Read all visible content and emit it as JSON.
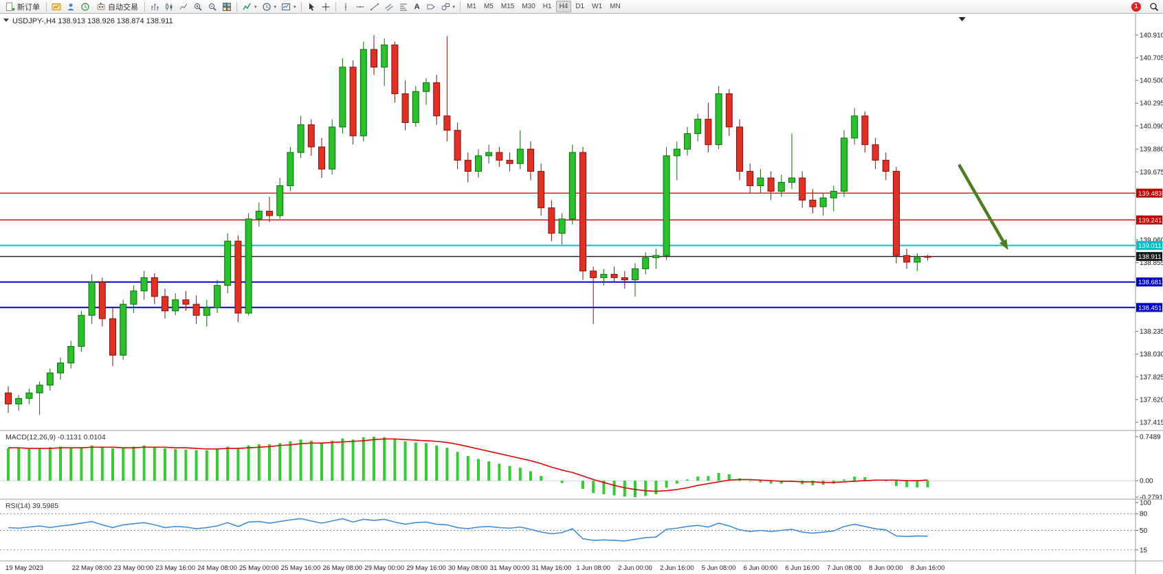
{
  "toolbar": {
    "new_order_label": "新订单",
    "auto_trading_label": "自动交易",
    "text_tool_label": "A",
    "timeframes": [
      "M1",
      "M5",
      "M15",
      "M30",
      "H1",
      "H4",
      "D1",
      "W1",
      "MN"
    ],
    "active_timeframe": "H4",
    "notification_count": "1"
  },
  "chart": {
    "symbol_info": "USDJPY-,H4  138.913 138.926 138.874 138.911",
    "price_ticks": [
      "140.910",
      "140.705",
      "140.500",
      "140.295",
      "140.090",
      "139.880",
      "139.675",
      "139.060",
      "138.855",
      "138.235",
      "138.030",
      "137.825",
      "137.620",
      "137.415"
    ],
    "levels": [
      {
        "label": "139.483",
        "price": 139.483,
        "color": "#C00000",
        "width": 1.3
      },
      {
        "label": "139.241",
        "price": 139.241,
        "color": "#C00000",
        "width": 1.3
      },
      {
        "label": "139.011",
        "price": 139.011,
        "color": "#00C2C2",
        "width": 2
      },
      {
        "label": "138.911",
        "price": 138.911,
        "color": "#1A1A1A",
        "width": 1.3
      },
      {
        "label": "138.681",
        "price": 138.681,
        "color": "#0000C8",
        "width": 2
      },
      {
        "label": "138.451",
        "price": 138.451,
        "color": "#0000C8",
        "width": 2
      }
    ],
    "arrow": {
      "bar1": 91,
      "price1": 139.74,
      "bar2": 95.7,
      "price2": 138.97
    },
    "colors": {
      "up": "#29C229",
      "up_border": "#0B6B0B",
      "down": "#E33022",
      "down_border": "#7E120B",
      "macd_hist": "#32CD32",
      "macd_signal": "#E00000",
      "rsi_line": "#3E8EDE",
      "arrow": "#4C7D1E"
    }
  },
  "macd": {
    "label": "MACD(12,26,9) -0.1131 0.0104",
    "axis": [
      "0.7489",
      "0.00",
      "-0.2791"
    ]
  },
  "rsi": {
    "label": "RSI(14) 39.5985",
    "axis": [
      "100",
      "80",
      "50",
      "15"
    ],
    "levels": [
      80,
      50,
      15
    ]
  },
  "time_axis": {
    "labels": [
      "19 May 2023",
      "22 May 08:00",
      "23 May 00:00",
      "23 May 16:00",
      "24 May 08:00",
      "25 May 00:00",
      "25 May 16:00",
      "26 May 08:00",
      "29 May 00:00",
      "29 May 16:00",
      "30 May 08:00",
      "31 May 00:00",
      "31 May 16:00",
      "1 Jun 08:00",
      "2 Jun 00:00",
      "2 Jun 16:00",
      "5 Jun 08:00",
      "6 Jun 00:00",
      "6 Jun 16:00",
      "7 Jun 08:00",
      "8 Jun 00:00",
      "8 Jun 16:00"
    ],
    "bar_index": [
      0,
      8,
      12,
      16,
      20,
      24,
      28,
      32,
      36,
      40,
      44,
      48,
      52,
      56,
      60,
      64,
      68,
      72,
      76,
      80,
      84,
      88
    ]
  },
  "chart_data": {
    "type": "candlestick",
    "symbol": "USDJPY",
    "timeframe": "H4",
    "ylim": [
      137.28,
      141.0
    ],
    "macd_ylim": [
      -0.2791,
      0.7489
    ],
    "rsi_ylim": [
      0,
      100
    ],
    "ohlc": [
      [
        137.68,
        137.74,
        137.5,
        137.58
      ],
      [
        137.58,
        137.66,
        137.52,
        137.63
      ],
      [
        137.63,
        137.72,
        137.58,
        137.68
      ],
      [
        137.68,
        137.78,
        137.48,
        137.75
      ],
      [
        137.75,
        137.9,
        137.7,
        137.86
      ],
      [
        137.86,
        138.0,
        137.8,
        137.95
      ],
      [
        137.95,
        138.15,
        137.9,
        138.1
      ],
      [
        138.1,
        138.42,
        138.05,
        138.38
      ],
      [
        138.38,
        138.75,
        138.3,
        138.68
      ],
      [
        138.68,
        138.72,
        138.28,
        138.35
      ],
      [
        138.35,
        138.45,
        137.92,
        138.02
      ],
      [
        138.02,
        138.52,
        137.98,
        138.48
      ],
      [
        138.48,
        138.65,
        138.4,
        138.6
      ],
      [
        138.6,
        138.78,
        138.52,
        138.72
      ],
      [
        138.72,
        138.76,
        138.48,
        138.55
      ],
      [
        138.55,
        138.62,
        138.35,
        138.42
      ],
      [
        138.42,
        138.58,
        138.38,
        138.52
      ],
      [
        138.52,
        138.6,
        138.42,
        138.48
      ],
      [
        138.48,
        138.56,
        138.3,
        138.38
      ],
      [
        138.38,
        138.52,
        138.28,
        138.45
      ],
      [
        138.45,
        138.7,
        138.4,
        138.65
      ],
      [
        138.65,
        139.12,
        138.58,
        139.05
      ],
      [
        139.05,
        139.1,
        138.32,
        138.4
      ],
      [
        138.4,
        139.3,
        138.38,
        139.25
      ],
      [
        139.25,
        139.4,
        139.18,
        139.32
      ],
      [
        139.32,
        139.45,
        139.22,
        139.28
      ],
      [
        139.28,
        139.62,
        139.25,
        139.55
      ],
      [
        139.55,
        139.9,
        139.5,
        139.85
      ],
      [
        139.85,
        140.18,
        139.8,
        140.1
      ],
      [
        140.1,
        140.15,
        139.82,
        139.9
      ],
      [
        139.9,
        139.98,
        139.62,
        139.7
      ],
      [
        139.7,
        140.15,
        139.65,
        140.08
      ],
      [
        140.08,
        140.7,
        140.02,
        140.62
      ],
      [
        140.62,
        140.68,
        139.92,
        140.0
      ],
      [
        140.0,
        140.85,
        139.95,
        140.78
      ],
      [
        140.78,
        140.91,
        140.55,
        140.62
      ],
      [
        140.62,
        140.88,
        140.45,
        140.82
      ],
      [
        140.82,
        140.85,
        140.3,
        140.38
      ],
      [
        140.38,
        140.5,
        140.05,
        140.12
      ],
      [
        140.12,
        140.45,
        140.08,
        140.4
      ],
      [
        140.4,
        140.52,
        140.28,
        140.48
      ],
      [
        140.48,
        140.55,
        140.1,
        140.18
      ],
      [
        140.18,
        140.9,
        139.95,
        140.05
      ],
      [
        140.05,
        140.12,
        139.7,
        139.78
      ],
      [
        139.78,
        139.85,
        139.58,
        139.68
      ],
      [
        139.68,
        139.88,
        139.62,
        139.82
      ],
      [
        139.82,
        139.92,
        139.75,
        139.85
      ],
      [
        139.85,
        139.9,
        139.72,
        139.78
      ],
      [
        139.78,
        139.85,
        139.68,
        139.75
      ],
      [
        139.75,
        140.05,
        139.7,
        139.88
      ],
      [
        139.88,
        139.95,
        139.6,
        139.68
      ],
      [
        139.68,
        139.75,
        139.28,
        139.35
      ],
      [
        139.35,
        139.42,
        139.05,
        139.12
      ],
      [
        139.12,
        139.3,
        139.02,
        139.25
      ],
      [
        139.25,
        139.92,
        139.2,
        139.85
      ],
      [
        139.85,
        139.9,
        138.7,
        138.78
      ],
      [
        138.78,
        138.82,
        138.3,
        138.72
      ],
      [
        138.72,
        138.8,
        138.65,
        138.75
      ],
      [
        138.75,
        138.82,
        138.68,
        138.72
      ],
      [
        138.72,
        138.78,
        138.62,
        138.7
      ],
      [
        138.7,
        138.85,
        138.55,
        138.8
      ],
      [
        138.8,
        138.95,
        138.75,
        138.9
      ],
      [
        138.9,
        138.98,
        138.8,
        138.92
      ],
      [
        138.92,
        139.9,
        138.88,
        139.82
      ],
      [
        139.82,
        139.95,
        139.6,
        139.88
      ],
      [
        139.88,
        140.08,
        139.82,
        140.02
      ],
      [
        140.02,
        140.2,
        139.95,
        140.15
      ],
      [
        140.15,
        140.3,
        139.85,
        139.92
      ],
      [
        139.92,
        140.45,
        139.88,
        140.38
      ],
      [
        140.38,
        140.42,
        140.0,
        140.08
      ],
      [
        140.08,
        140.15,
        139.6,
        139.68
      ],
      [
        139.68,
        139.75,
        139.48,
        139.55
      ],
      [
        139.55,
        139.7,
        139.48,
        139.62
      ],
      [
        139.62,
        139.68,
        139.42,
        139.5
      ],
      [
        139.5,
        139.65,
        139.45,
        139.58
      ],
      [
        139.58,
        140.02,
        139.52,
        139.62
      ],
      [
        139.62,
        139.68,
        139.35,
        139.42
      ],
      [
        139.42,
        139.52,
        139.3,
        139.36
      ],
      [
        139.36,
        139.48,
        139.28,
        139.44
      ],
      [
        139.44,
        139.55,
        139.32,
        139.5
      ],
      [
        139.5,
        140.05,
        139.45,
        139.98
      ],
      [
        139.98,
        140.25,
        139.92,
        140.18
      ],
      [
        140.18,
        140.22,
        139.85,
        139.92
      ],
      [
        139.92,
        139.98,
        139.7,
        139.78
      ],
      [
        139.78,
        139.85,
        139.6,
        139.68
      ],
      [
        139.68,
        139.72,
        138.85,
        138.92
      ],
      [
        138.92,
        138.98,
        138.8,
        138.86
      ],
      [
        138.86,
        138.94,
        138.78,
        138.9
      ],
      [
        138.913,
        138.926,
        138.874,
        138.911
      ]
    ],
    "macd_histogram": [
      0.55,
      0.56,
      0.54,
      0.55,
      0.57,
      0.58,
      0.56,
      0.57,
      0.6,
      0.58,
      0.55,
      0.56,
      0.58,
      0.6,
      0.58,
      0.55,
      0.54,
      0.53,
      0.52,
      0.52,
      0.54,
      0.58,
      0.55,
      0.6,
      0.62,
      0.62,
      0.64,
      0.67,
      0.7,
      0.68,
      0.65,
      0.68,
      0.72,
      0.7,
      0.74,
      0.7489,
      0.74,
      0.71,
      0.67,
      0.65,
      0.64,
      0.6,
      0.56,
      0.49,
      0.42,
      0.37,
      0.33,
      0.29,
      0.25,
      0.22,
      0.16,
      0.08,
      0.0,
      -0.04,
      0.0,
      -0.14,
      -0.21,
      -0.23,
      -0.25,
      -0.27,
      -0.2791,
      -0.26,
      -0.23,
      -0.12,
      -0.05,
      0.02,
      0.07,
      0.08,
      0.13,
      0.11,
      0.04,
      -0.01,
      -0.03,
      -0.05,
      -0.05,
      -0.02,
      -0.06,
      -0.08,
      -0.07,
      -0.05,
      0.02,
      0.07,
      0.06,
      0.02,
      -0.01,
      -0.09,
      -0.11,
      -0.115,
      -0.1131
    ],
    "macd_signal": [
      0.56,
      0.56,
      0.55,
      0.55,
      0.55,
      0.56,
      0.56,
      0.56,
      0.57,
      0.57,
      0.57,
      0.56,
      0.56,
      0.57,
      0.57,
      0.57,
      0.56,
      0.56,
      0.55,
      0.54,
      0.54,
      0.55,
      0.55,
      0.56,
      0.57,
      0.58,
      0.6,
      0.61,
      0.63,
      0.64,
      0.64,
      0.65,
      0.66,
      0.67,
      0.68,
      0.7,
      0.71,
      0.71,
      0.7,
      0.69,
      0.68,
      0.67,
      0.65,
      0.62,
      0.58,
      0.54,
      0.5,
      0.46,
      0.42,
      0.38,
      0.34,
      0.29,
      0.23,
      0.18,
      0.14,
      0.08,
      0.02,
      -0.03,
      -0.08,
      -0.12,
      -0.15,
      -0.17,
      -0.18,
      -0.17,
      -0.15,
      -0.12,
      -0.08,
      -0.05,
      -0.02,
      0.01,
      0.02,
      0.02,
      0.01,
      0.0,
      -0.01,
      -0.01,
      -0.02,
      -0.02,
      -0.03,
      -0.03,
      -0.02,
      -0.01,
      0.0,
      0.01,
      0.01,
      0.01,
      0.0,
      0.0,
      0.0104
    ],
    "rsi": [
      55,
      54,
      56,
      58,
      55,
      58,
      60,
      63,
      66,
      60,
      55,
      60,
      62,
      64,
      60,
      55,
      57,
      56,
      53,
      55,
      58,
      64,
      57,
      65,
      66,
      63,
      66,
      69,
      71,
      67,
      63,
      67,
      71,
      65,
      70,
      68,
      70,
      65,
      61,
      64,
      65,
      61,
      60,
      55,
      53,
      56,
      57,
      55,
      54,
      56,
      52,
      47,
      44,
      46,
      53,
      35,
      32,
      33,
      32,
      31,
      34,
      37,
      38,
      52,
      54,
      57,
      59,
      56,
      63,
      58,
      51,
      48,
      50,
      48,
      50,
      52,
      47,
      45,
      47,
      49,
      57,
      61,
      57,
      53,
      51,
      40,
      39,
      40,
      39.5985
    ]
  }
}
